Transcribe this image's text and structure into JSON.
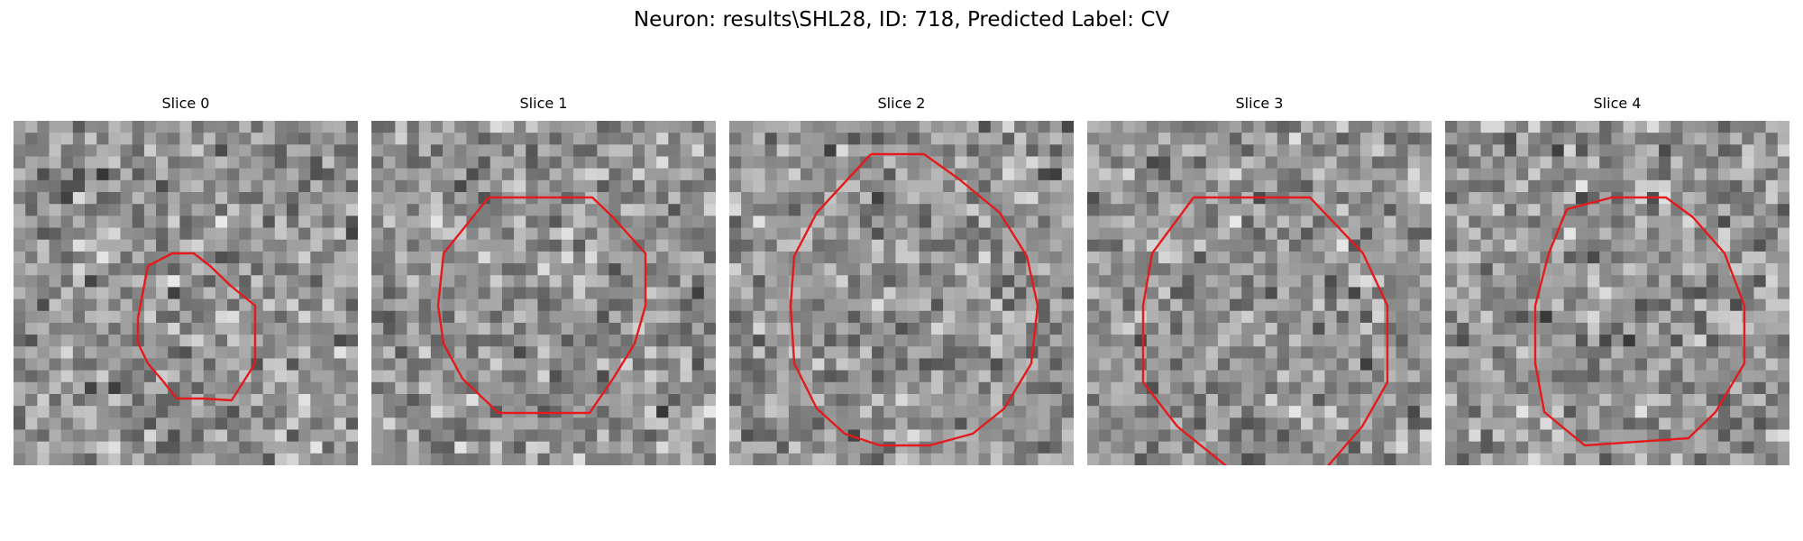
{
  "figure": {
    "title": "Neuron: results\\SHL28, ID: 718, Predicted Label: CV"
  },
  "panels": [
    {
      "title": "Slice 0",
      "texture_seed": 11,
      "outline_color": "#e41a1c"
    },
    {
      "title": "Slice 1",
      "texture_seed": 23,
      "outline_color": "#e41a1c"
    },
    {
      "title": "Slice 2",
      "texture_seed": 37,
      "outline_color": "#e41a1c"
    },
    {
      "title": "Slice 3",
      "texture_seed": 41,
      "outline_color": "#e41a1c"
    },
    {
      "title": "Slice 4",
      "texture_seed": 53,
      "outline_color": "#e41a1c"
    }
  ]
}
